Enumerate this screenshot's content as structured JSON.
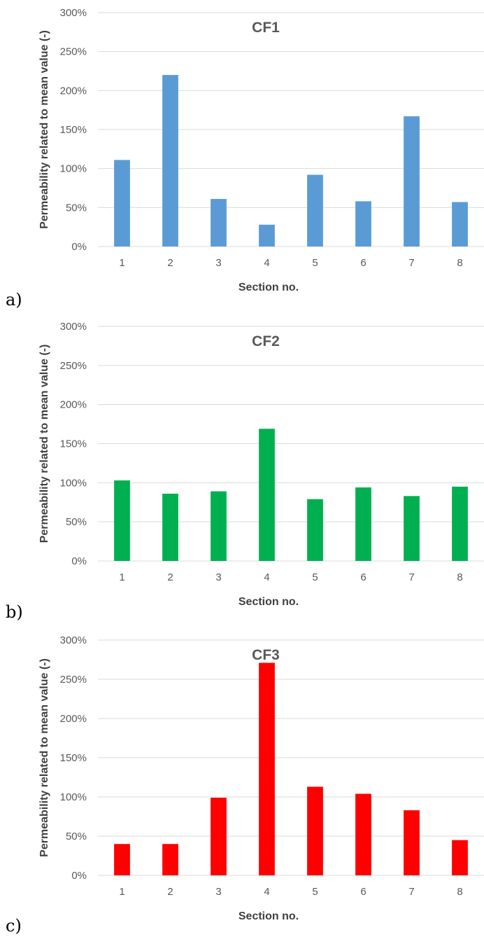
{
  "chart_data": [
    {
      "type": "bar",
      "panel_label": "a)",
      "title": "CF1",
      "xlabel": "Section no.",
      "ylabel": "Permeability related to mean value (-)",
      "categories": [
        "1",
        "2",
        "3",
        "4",
        "5",
        "6",
        "7",
        "8"
      ],
      "series": [
        {
          "values": [
            111,
            220,
            61,
            28,
            92,
            58,
            167,
            57
          ]
        }
      ],
      "ylim": [
        0,
        300
      ],
      "yticks": [
        "0%",
        "50%",
        "100%",
        "150%",
        "200%",
        "250%",
        "300%"
      ],
      "color": "#5b9bd5",
      "grid": true
    },
    {
      "type": "bar",
      "panel_label": "b)",
      "title": "CF2",
      "xlabel": "Section no.",
      "ylabel": "Permeability related to mean value (-)",
      "categories": [
        "1",
        "2",
        "3",
        "4",
        "5",
        "6",
        "7",
        "8"
      ],
      "series": [
        {
          "values": [
            103,
            86,
            89,
            169,
            79,
            94,
            83,
            95
          ]
        }
      ],
      "ylim": [
        0,
        300
      ],
      "yticks": [
        "0%",
        "50%",
        "100%",
        "150%",
        "200%",
        "250%",
        "300%"
      ],
      "color": "#00b050",
      "grid": true
    },
    {
      "type": "bar",
      "panel_label": "c)",
      "title": "CF3",
      "xlabel": "Section no.",
      "ylabel": "Permeability related to mean value (-)",
      "categories": [
        "1",
        "2",
        "3",
        "4",
        "5",
        "6",
        "7",
        "8"
      ],
      "series": [
        {
          "values": [
            40,
            40,
            99,
            271,
            113,
            104,
            83,
            45
          ]
        }
      ],
      "ylim": [
        0,
        300
      ],
      "yticks": [
        "0%",
        "50%",
        "100%",
        "150%",
        "200%",
        "250%",
        "300%"
      ],
      "color": "#ff0000",
      "grid": true
    }
  ]
}
